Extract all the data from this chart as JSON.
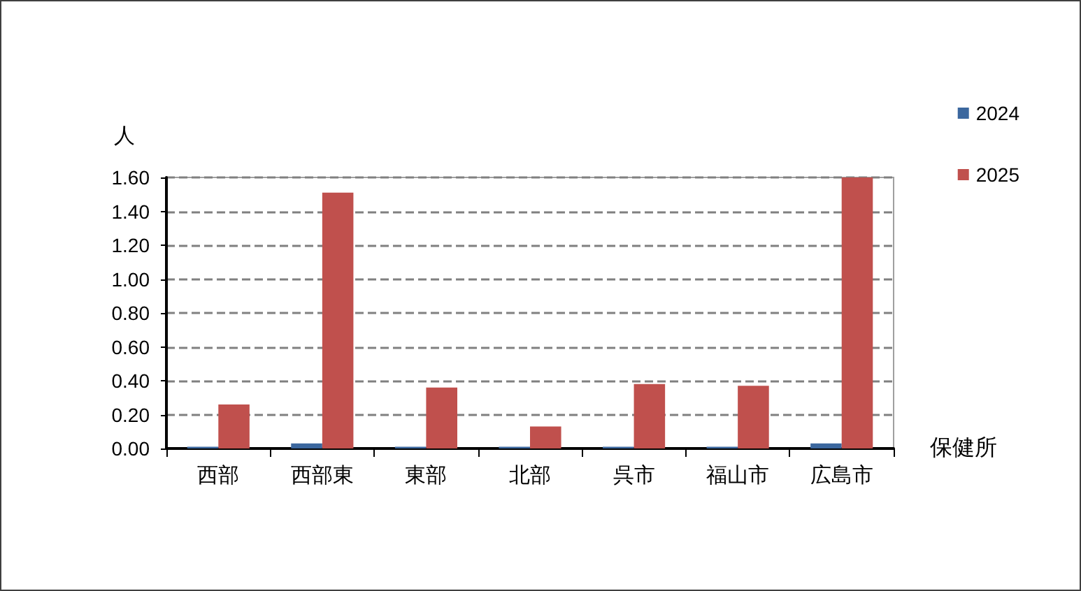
{
  "chart_data": {
    "type": "bar",
    "categories": [
      "西部",
      "西部東",
      "東部",
      "北部",
      "呉市",
      "福山市",
      "広島市"
    ],
    "series": [
      {
        "name": "2024",
        "color": "#3b679e",
        "values": [
          0.01,
          0.03,
          0.01,
          0.01,
          0.01,
          0.01,
          0.03
        ]
      },
      {
        "name": "2025",
        "color": "#c0504d",
        "values": [
          0.26,
          1.51,
          0.36,
          0.13,
          0.38,
          0.37,
          1.6
        ]
      }
    ],
    "xlabel": "保健所",
    "ylabel": "人",
    "ylim": [
      0,
      1.6
    ],
    "yticks": [
      {
        "value": 0,
        "label": "0.00"
      },
      {
        "value": 0.2,
        "label": "0.20"
      },
      {
        "value": 0.4,
        "label": "0.40"
      },
      {
        "value": 0.6,
        "label": "0.60"
      },
      {
        "value": 0.8,
        "label": "0.80"
      },
      {
        "value": 1,
        "label": "1.00"
      },
      {
        "value": 1.2,
        "label": "1.20"
      },
      {
        "value": 1.4,
        "label": "1.40"
      },
      {
        "value": 1.6,
        "label": "1.60"
      }
    ],
    "grid": "y",
    "legend": "top right"
  }
}
